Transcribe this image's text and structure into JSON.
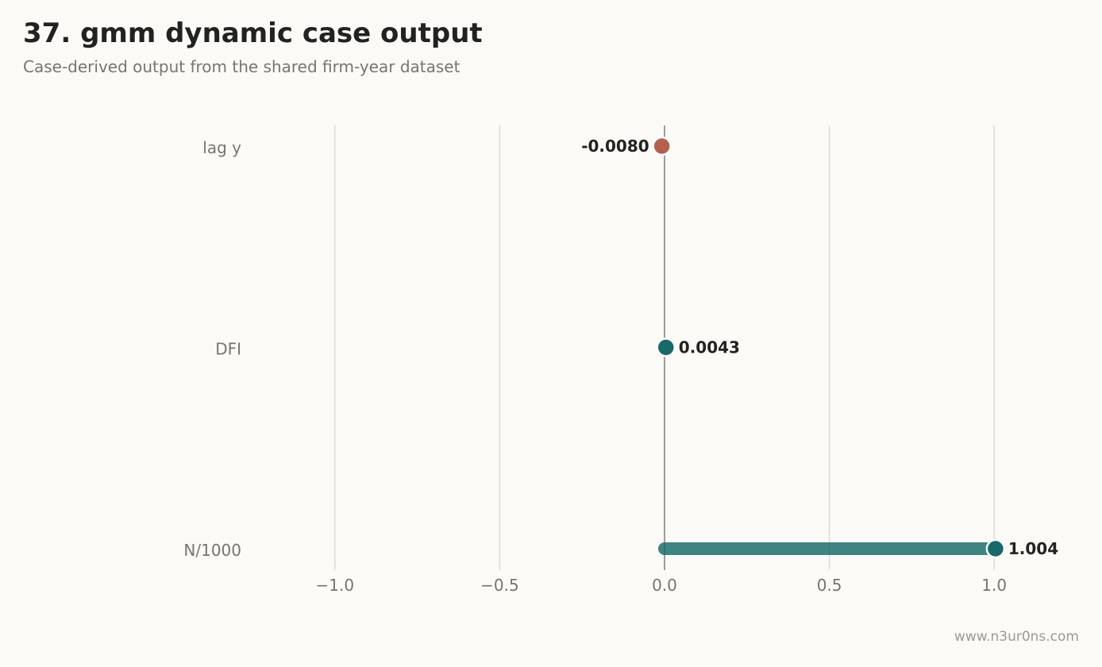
{
  "header": {
    "title": "37. gmm dynamic case output",
    "subtitle": "Case-derived output from the shared firm-year dataset"
  },
  "footer": {
    "watermark": "www.n3ur0ns.com"
  },
  "colors": {
    "background": "#fbfaf7",
    "positive": "#17696a",
    "negative": "#b5604f",
    "grid": "#dedbd5",
    "zero_line": "#a09d98"
  },
  "chart_data": {
    "type": "lollipop",
    "orientation": "horizontal",
    "categories": [
      "lag y",
      "DFI",
      "N/1000"
    ],
    "values": [
      -0.008,
      0.0043,
      1.004
    ],
    "value_labels": [
      "-0.0080",
      "0.0043",
      "1.004"
    ],
    "xlim": [
      -1.25,
      1.25
    ],
    "xticks": [
      -1.0,
      -0.5,
      0.0,
      0.5,
      1.0
    ],
    "xtick_labels": [
      "−1.0",
      "−0.5",
      "0.0",
      "0.5",
      "1.0"
    ],
    "grid": "vertical",
    "zero_line": true
  }
}
